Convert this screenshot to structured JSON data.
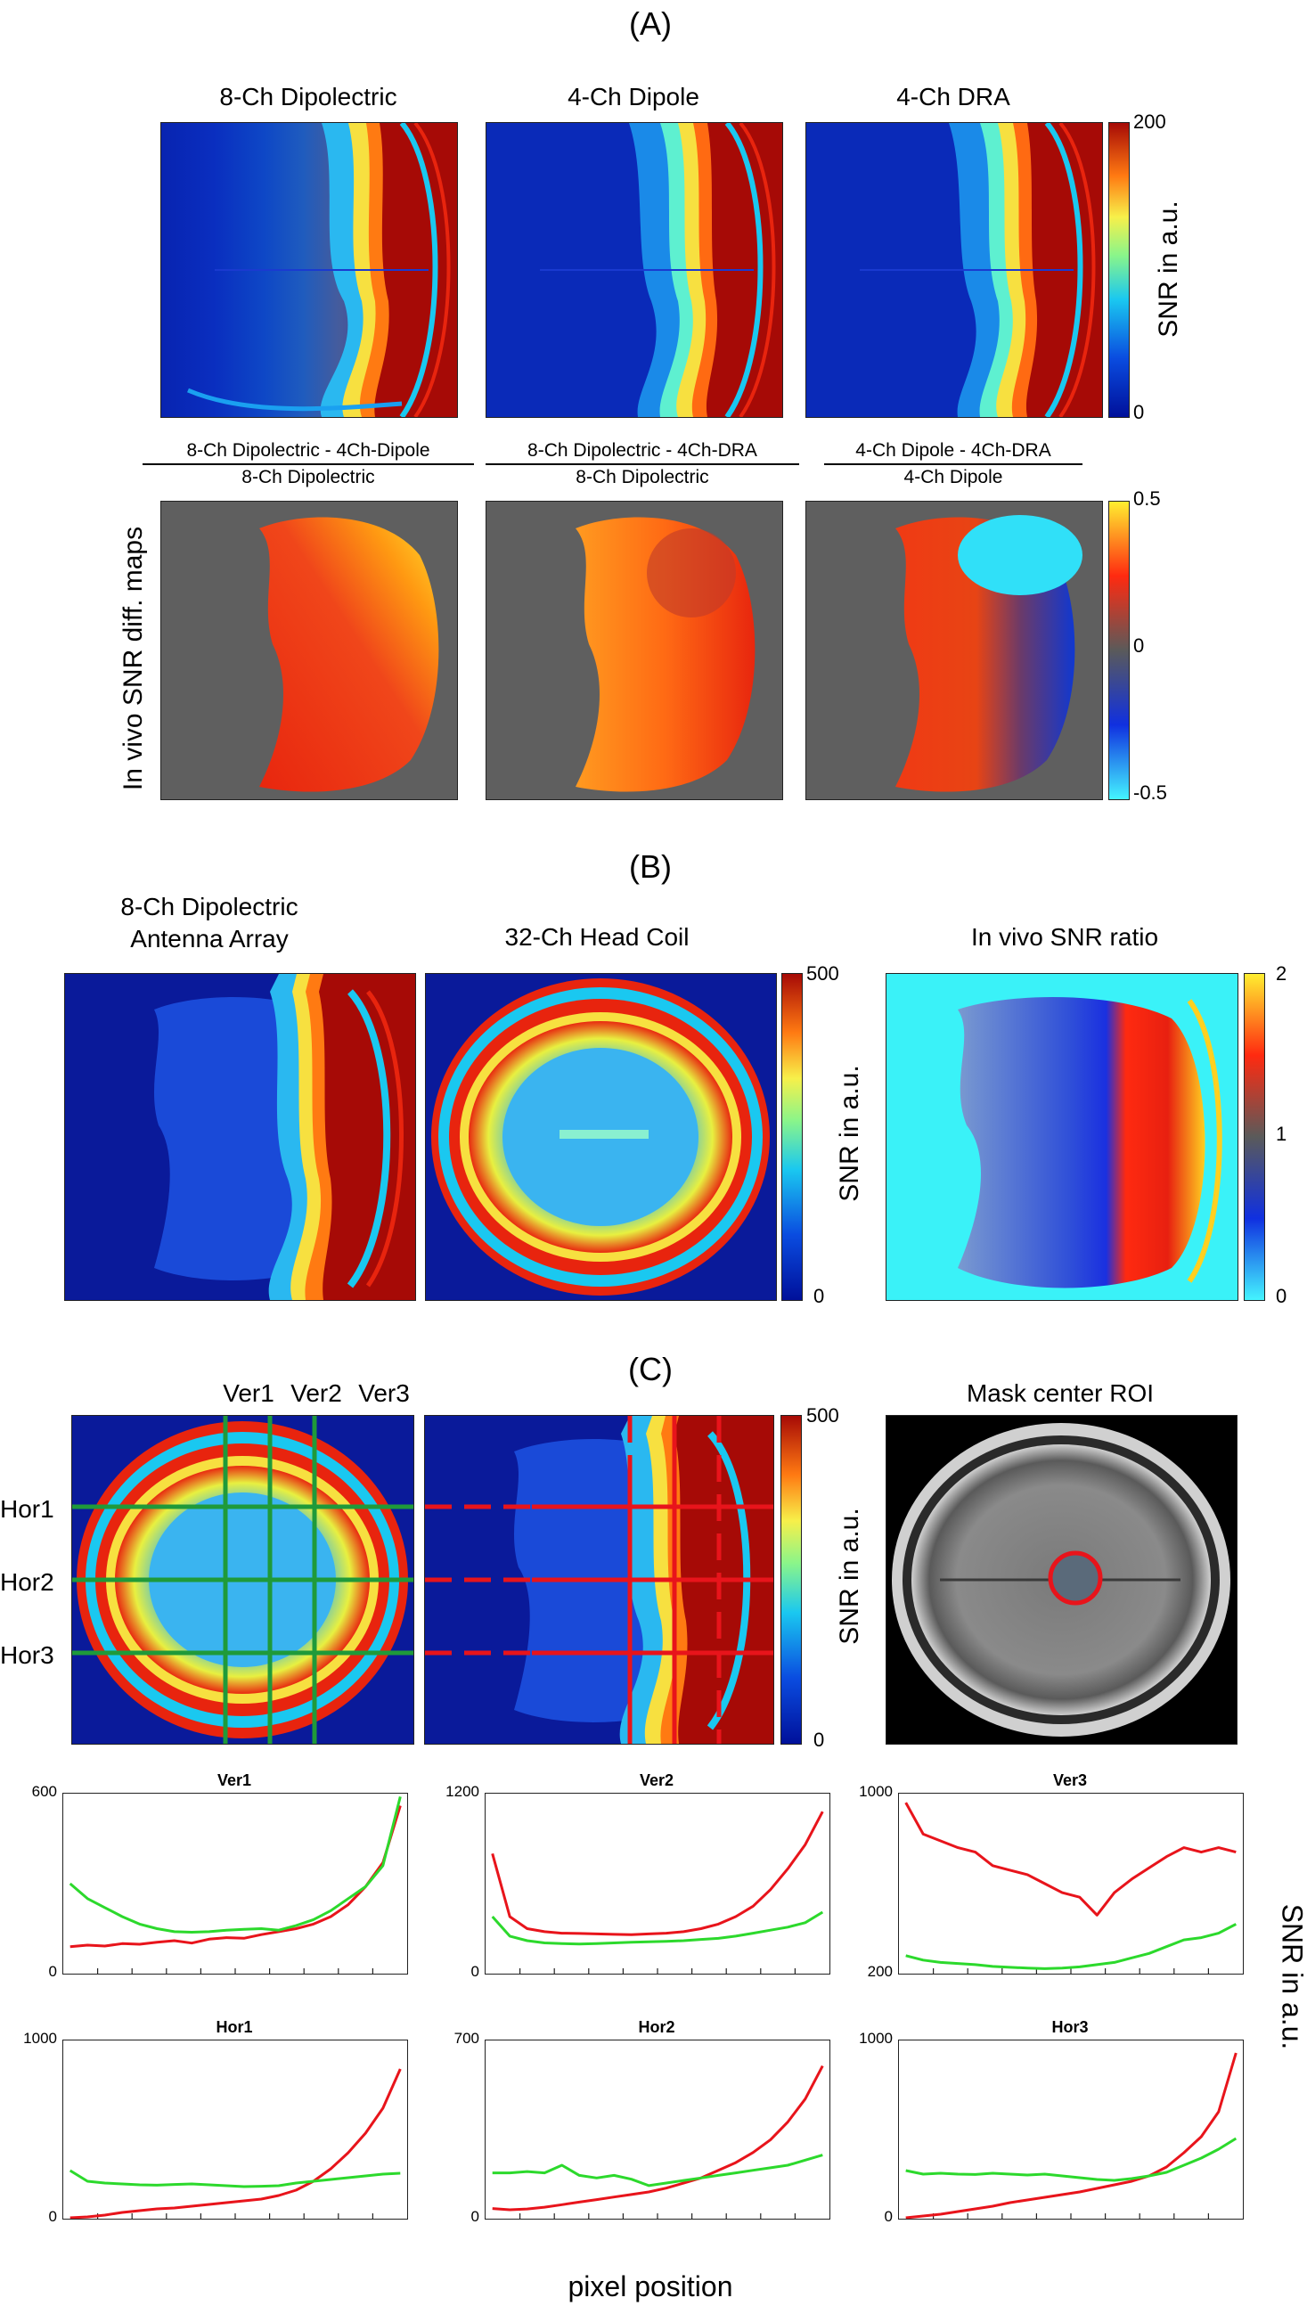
{
  "panel_a": {
    "letter": "(A)",
    "maps": [
      {
        "title": "8-Ch Dipolectric"
      },
      {
        "title": "4-Ch Dipole"
      },
      {
        "title": "4-Ch DRA"
      }
    ],
    "colorbar": {
      "max": "200",
      "min": "0",
      "label": "SNR in a.u."
    },
    "diff_maps": [
      {
        "numerator": "8-Ch Dipolectric - 4Ch-Dipole",
        "denominator": "8-Ch Dipolectric"
      },
      {
        "numerator": "8-Ch Dipolectric - 4Ch-DRA",
        "denominator": "8-Ch Dipolectric"
      },
      {
        "numerator": "4-Ch Dipole - 4Ch-DRA",
        "denominator": "4-Ch Dipole"
      }
    ],
    "diff_colorbar": {
      "max": "0.5",
      "mid": "0",
      "min": "-0.5"
    },
    "diff_ylabel": "In vivo SNR diff. maps"
  },
  "panel_b": {
    "letter": "(B)",
    "map1_title_line1": "8-Ch Dipolectric",
    "map1_title_line2": "Antenna Array",
    "map2_title": "32-Ch Head Coil",
    "colorbar": {
      "max": "500",
      "min": "0",
      "label": "SNR in a.u."
    },
    "ratio_title": "In vivo SNR ratio",
    "ratio_colorbar": {
      "max": "2",
      "mid": "1",
      "min": "0"
    }
  },
  "panel_c": {
    "letter": "(C)",
    "vertical_lines": [
      "Ver1",
      "Ver2",
      "Ver3"
    ],
    "horizontal_lines": [
      "Hor1",
      "Hor2",
      "Hor3"
    ],
    "colorbar": {
      "max": "500",
      "min": "0",
      "label": "SNR in a.u."
    },
    "mask_title": "Mask center ROI",
    "xlabel": "pixel position",
    "ylabel": "SNR in a.u.",
    "colors": {
      "array8": "#e8141b",
      "coil32": "#2cd92c",
      "guide_green": "#1f9a3a",
      "guide_red": "#e8141b"
    }
  },
  "chart_data": [
    {
      "type": "line",
      "title": "Ver1",
      "ylim": [
        0,
        600
      ],
      "ytick_labels": [
        "600",
        "0"
      ],
      "series": [
        {
          "color": "#e8141b",
          "values": [
            90,
            95,
            92,
            100,
            98,
            105,
            110,
            102,
            115,
            120,
            118,
            130,
            140,
            150,
            165,
            190,
            230,
            290,
            370,
            560
          ]
        },
        {
          "color": "#2cd92c",
          "values": [
            300,
            250,
            220,
            190,
            165,
            150,
            140,
            138,
            140,
            145,
            148,
            150,
            145,
            160,
            180,
            210,
            250,
            290,
            360,
            590
          ]
        }
      ]
    },
    {
      "type": "line",
      "title": "Ver2",
      "ylim": [
        0,
        1200
      ],
      "ytick_labels": [
        "1200",
        "0"
      ],
      "series": [
        {
          "color": "#e8141b",
          "values": [
            800,
            380,
            300,
            280,
            270,
            268,
            265,
            262,
            260,
            265,
            270,
            280,
            300,
            330,
            380,
            450,
            560,
            700,
            860,
            1080
          ]
        },
        {
          "color": "#2cd92c",
          "values": [
            380,
            250,
            220,
            205,
            200,
            198,
            200,
            205,
            210,
            212,
            215,
            220,
            228,
            235,
            250,
            270,
            290,
            310,
            340,
            410
          ]
        }
      ]
    },
    {
      "type": "line",
      "title": "Ver3",
      "ylim": [
        200,
        1000
      ],
      "ytick_labels": [
        "1000",
        "200"
      ],
      "series": [
        {
          "color": "#e8141b",
          "values": [
            960,
            820,
            790,
            760,
            740,
            680,
            660,
            640,
            600,
            560,
            540,
            460,
            560,
            620,
            670,
            720,
            760,
            740,
            760,
            740
          ]
        },
        {
          "color": "#2cd92c",
          "values": [
            280,
            260,
            250,
            245,
            240,
            232,
            228,
            225,
            222,
            225,
            230,
            240,
            250,
            270,
            290,
            320,
            350,
            360,
            380,
            420
          ]
        }
      ]
    },
    {
      "type": "line",
      "title": "Hor1",
      "ylim": [
        0,
        1000
      ],
      "ytick_labels": [
        "1000",
        "0"
      ],
      "series": [
        {
          "color": "#e8141b",
          "values": [
            5,
            10,
            20,
            35,
            45,
            55,
            60,
            70,
            80,
            90,
            100,
            110,
            130,
            160,
            210,
            280,
            370,
            480,
            620,
            840
          ]
        },
        {
          "color": "#2cd92c",
          "values": [
            270,
            210,
            200,
            195,
            190,
            188,
            192,
            195,
            190,
            185,
            180,
            182,
            185,
            200,
            210,
            220,
            230,
            240,
            250,
            255
          ]
        }
      ]
    },
    {
      "type": "line",
      "title": "Hor2",
      "ylim": [
        0,
        700
      ],
      "ytick_labels": [
        "700",
        "0"
      ],
      "series": [
        {
          "color": "#e8141b",
          "values": [
            40,
            35,
            38,
            45,
            55,
            65,
            75,
            85,
            95,
            105,
            120,
            140,
            160,
            190,
            220,
            260,
            310,
            380,
            470,
            600
          ]
        },
        {
          "color": "#2cd92c",
          "values": [
            180,
            180,
            185,
            180,
            210,
            170,
            160,
            170,
            155,
            130,
            140,
            150,
            160,
            170,
            180,
            190,
            200,
            210,
            230,
            250
          ]
        }
      ]
    },
    {
      "type": "line",
      "title": "Hor3",
      "ylim": [
        0,
        1000
      ],
      "ytick_labels": [
        "1000",
        "0"
      ],
      "series": [
        {
          "color": "#e8141b",
          "values": [
            5,
            15,
            25,
            40,
            55,
            70,
            90,
            105,
            120,
            135,
            150,
            170,
            190,
            210,
            240,
            290,
            370,
            460,
            600,
            930
          ]
        },
        {
          "color": "#2cd92c",
          "values": [
            270,
            250,
            255,
            250,
            248,
            255,
            250,
            245,
            250,
            240,
            230,
            220,
            215,
            225,
            240,
            260,
            300,
            340,
            390,
            450
          ]
        }
      ]
    }
  ]
}
